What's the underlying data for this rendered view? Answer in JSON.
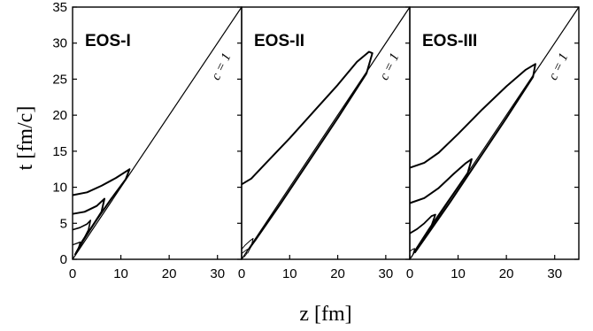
{
  "chart_data": {
    "type": "line",
    "xlabel": "z [fm]",
    "ylabel": "t [fm/c]",
    "ylim": [
      0,
      35
    ],
    "yticks": [
      0,
      5,
      10,
      15,
      20,
      25,
      30,
      35
    ],
    "panels": [
      {
        "title": "EOS-I",
        "xlim": [
          0,
          35
        ],
        "xticks": [
          0,
          10,
          20,
          30
        ],
        "annotation": "c = 1",
        "lightcone": {
          "slope": 1,
          "from": [
            0,
            0
          ],
          "to": [
            35,
            35
          ]
        },
        "contours": [
          {
            "points": [
              [
                0,
                8.9
              ],
              [
                3,
                9.3
              ],
              [
                6,
                10.2
              ],
              [
                9,
                11.3
              ],
              [
                11.8,
                12.5
              ],
              [
                11,
                11.1
              ],
              [
                8,
                8.4
              ],
              [
                5,
                5.5
              ],
              [
                2,
                2.5
              ],
              [
                0.5,
                0.6
              ]
            ],
            "width": 2.0
          },
          {
            "points": [
              [
                0,
                6.3
              ],
              [
                2.5,
                6.6
              ],
              [
                5,
                7.4
              ],
              [
                6.6,
                8.4
              ],
              [
                6.0,
                6.6
              ],
              [
                4.0,
                4.5
              ],
              [
                2,
                2.4
              ],
              [
                0.5,
                0.6
              ]
            ],
            "width": 2.0
          },
          {
            "points": [
              [
                0,
                4.1
              ],
              [
                1.5,
                4.4
              ],
              [
                3,
                4.9
              ],
              [
                3.7,
                5.4
              ],
              [
                3.3,
                4.1
              ],
              [
                2,
                2.4
              ],
              [
                0.8,
                1.0
              ]
            ],
            "width": 1.6
          },
          {
            "points": [
              [
                0,
                2.0
              ],
              [
                0.8,
                2.2
              ],
              [
                1.6,
                2.4
              ],
              [
                1.2,
                1.5
              ],
              [
                0.6,
                0.7
              ]
            ],
            "width": 1.3
          }
        ]
      },
      {
        "title": "EOS-II",
        "xlim": [
          0,
          35
        ],
        "xticks": [
          0,
          10,
          20,
          30
        ],
        "annotation": "c = 1",
        "lightcone": {
          "slope": 1,
          "from": [
            0,
            0
          ],
          "to": [
            35,
            35
          ]
        },
        "contours": [
          {
            "points": [
              [
                0,
                10.4
              ],
              [
                2,
                11.2
              ],
              [
                5,
                13.3
              ],
              [
                10,
                16.8
              ],
              [
                15,
                20.5
              ],
              [
                20,
                24.2
              ],
              [
                24,
                27.4
              ],
              [
                26.5,
                28.8
              ],
              [
                27.2,
                28.6
              ],
              [
                26,
                25.8
              ],
              [
                20,
                19.6
              ],
              [
                14,
                13.6
              ],
              [
                8,
                7.6
              ],
              [
                3,
                2.8
              ],
              [
                1.5,
                1.4
              ]
            ],
            "width": 2.0
          },
          {
            "points": [
              [
                0,
                1.4
              ],
              [
                0.8,
                2.0
              ],
              [
                1.8,
                2.6
              ],
              [
                2.4,
                2.9
              ],
              [
                2.0,
                1.8
              ],
              [
                1.2,
                0.8
              ]
            ],
            "width": 1.0
          },
          {
            "points": [
              [
                0,
                0.8
              ],
              [
                0.6,
                1.1
              ],
              [
                1.2,
                1.4
              ],
              [
                1.0,
                0.7
              ],
              [
                0.5,
                0.3
              ]
            ],
            "width": 0.8
          }
        ]
      },
      {
        "title": "EOS-III",
        "xlim": [
          0,
          35
        ],
        "xticks": [
          0,
          10,
          20,
          30
        ],
        "annotation": "c = 1",
        "lightcone": {
          "slope": 1,
          "from": [
            0,
            0
          ],
          "to": [
            35,
            35
          ]
        },
        "contours": [
          {
            "points": [
              [
                0,
                12.7
              ],
              [
                3,
                13.4
              ],
              [
                6,
                14.8
              ],
              [
                10,
                17.4
              ],
              [
                15,
                20.8
              ],
              [
                20,
                24.0
              ],
              [
                24,
                26.3
              ],
              [
                26.0,
                27.1
              ],
              [
                25.5,
                25.3
              ],
              [
                20,
                19.6
              ],
              [
                14,
                13.6
              ],
              [
                8,
                7.6
              ],
              [
                3,
                2.8
              ],
              [
                1.0,
                0.9
              ]
            ],
            "width": 2.0
          },
          {
            "points": [
              [
                0,
                7.8
              ],
              [
                3,
                8.5
              ],
              [
                6,
                9.9
              ],
              [
                9,
                11.8
              ],
              [
                11.5,
                13.3
              ],
              [
                12.8,
                13.9
              ],
              [
                12.0,
                12.0
              ],
              [
                8,
                8.1
              ],
              [
                4,
                4.2
              ],
              [
                1,
                1.1
              ]
            ],
            "width": 2.0
          },
          {
            "points": [
              [
                0,
                3.6
              ],
              [
                1.5,
                4.2
              ],
              [
                3,
                5.0
              ],
              [
                4.5,
                6.0
              ],
              [
                5.3,
                6.2
              ],
              [
                4.5,
                4.7
              ],
              [
                3,
                3.1
              ],
              [
                1,
                1.1
              ]
            ],
            "width": 1.8
          },
          {
            "points": [
              [
                0,
                1.1
              ],
              [
                0.6,
                1.4
              ],
              [
                1.0,
                1.5
              ],
              [
                0.7,
                0.8
              ],
              [
                0.4,
                0.3
              ]
            ],
            "width": 1.0
          }
        ]
      }
    ]
  }
}
